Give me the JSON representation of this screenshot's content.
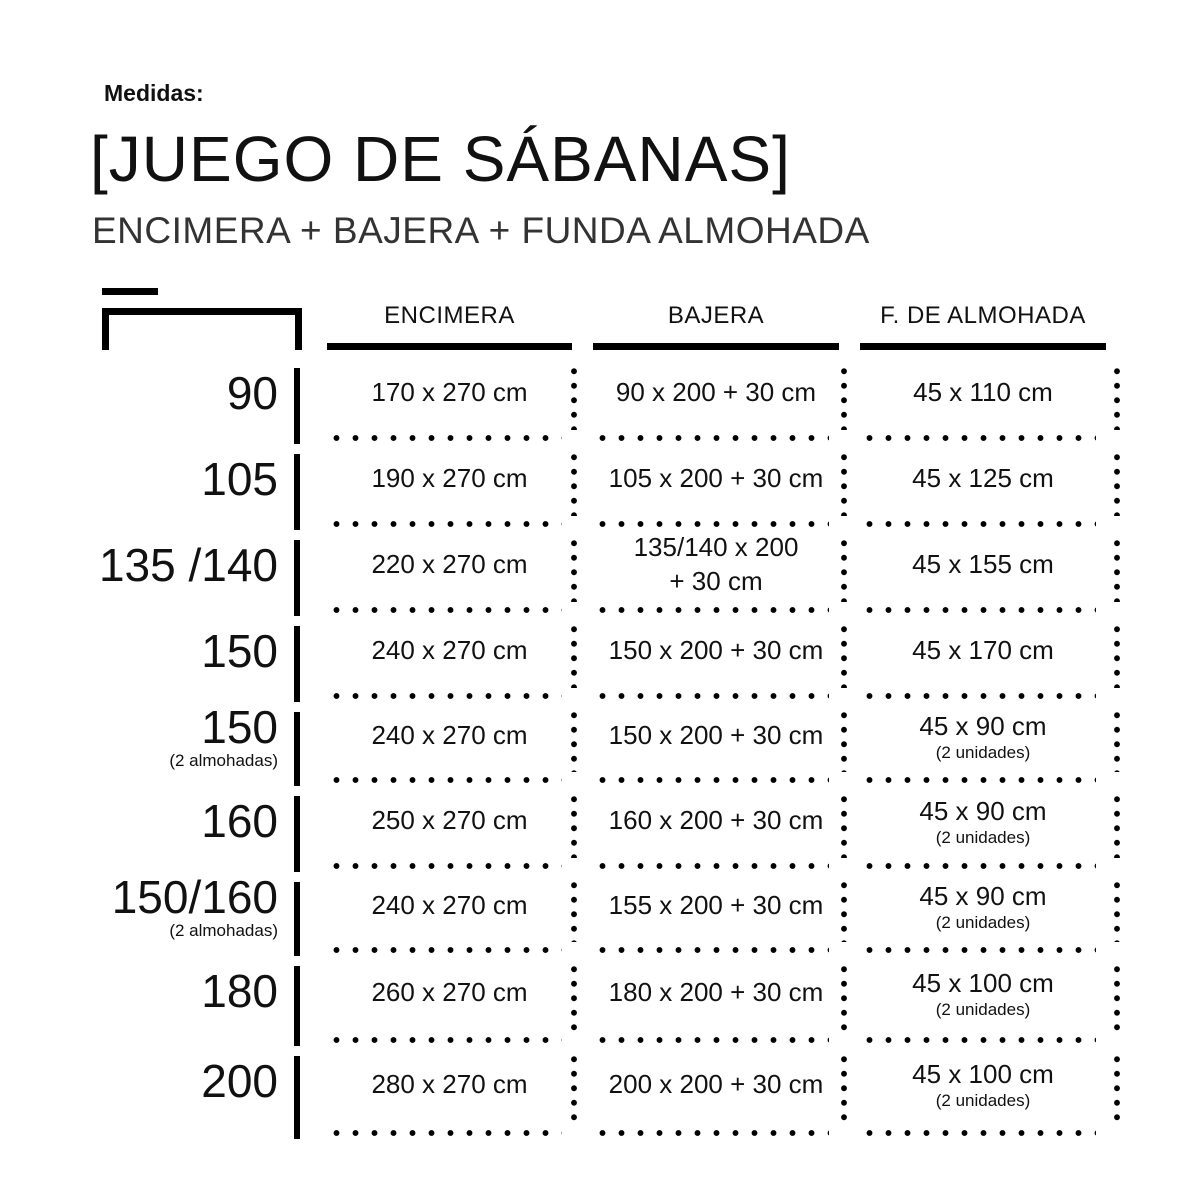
{
  "header": {
    "label": "Medidas:",
    "title": "[JUEGO DE SÁBANAS]",
    "subtitle": "ENCIMERA  + BAJERA + FUNDA ALMOHADA"
  },
  "icon": "bed-icon",
  "columns": [
    "ENCIMERA",
    "BAJERA",
    "F. DE ALMOHADA"
  ],
  "rows": [
    {
      "size": "90",
      "note": "",
      "encimera": "170 x 270 cm",
      "bajera": "90 x 200 + 30 cm",
      "funda": "45 x 110  cm",
      "funda_note": ""
    },
    {
      "size": "105",
      "note": "",
      "encimera": "190 x 270 cm",
      "bajera": "105 x 200 + 30 cm",
      "funda": "45 x 125  cm",
      "funda_note": ""
    },
    {
      "size": "135 /140",
      "note": "",
      "encimera": "220 x 270 cm",
      "bajera": "135/140 x 200\n+ 30 cm",
      "funda": "45 x 155  cm",
      "funda_note": ""
    },
    {
      "size": "150",
      "note": "",
      "encimera": "240 x 270 cm",
      "bajera": "150 x 200 + 30 cm",
      "funda": "45 x 170  cm",
      "funda_note": ""
    },
    {
      "size": "150",
      "note": "(2 almohadas)",
      "encimera": "240 x 270 cm",
      "bajera": "150 x 200 + 30 cm",
      "funda": "45 x 90 cm",
      "funda_note": "(2 unidades)"
    },
    {
      "size": "160",
      "note": "",
      "encimera": "250 x 270 cm",
      "bajera": "160 x 200 + 30 cm",
      "funda": "45 x 90 cm",
      "funda_note": "(2 unidades)"
    },
    {
      "size": "150/160",
      "note": "(2 almohadas)",
      "encimera": "240 x 270 cm",
      "bajera": "155 x 200 + 30 cm",
      "funda": "45 x 90 cm",
      "funda_note": "(2 unidades)"
    },
    {
      "size": "180",
      "note": "",
      "encimera": "260 x 270 cm",
      "bajera": "180 x 200 + 30 cm",
      "funda": "45 x 100 cm",
      "funda_note": "(2 unidades)"
    },
    {
      "size": "200",
      "note": "",
      "encimera": "280 x 270 cm",
      "bajera": "200 x 200 + 30 cm",
      "funda": "45 x 100 cm",
      "funda_note": "(2 unidades)"
    }
  ]
}
